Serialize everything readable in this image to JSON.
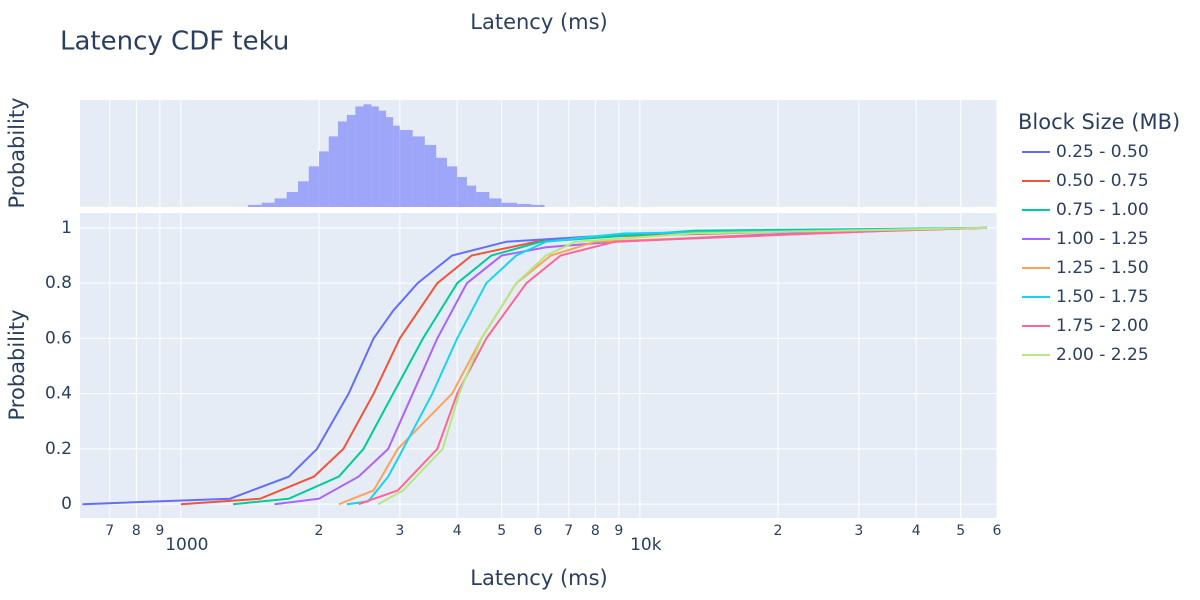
{
  "chart_data": [
    {
      "type": "histogram",
      "xlabel": "Latency (ms)",
      "ylabel": "Probability",
      "color": "#636efa",
      "log_x": true,
      "grid": true,
      "xlim": [
        603,
        60000
      ],
      "ylim": [
        0,
        0.05
      ],
      "bins": [
        1400,
        1500,
        1600,
        1700,
        1800,
        1900,
        2000,
        2100,
        2200,
        2300,
        2400,
        2500,
        2600,
        2700,
        2800,
        2900,
        3000,
        3200,
        3400,
        3600,
        3800,
        4000,
        4200,
        4400,
        4700,
        5000,
        5400,
        5800,
        6200
      ],
      "values": [
        0.001,
        0.002,
        0.004,
        0.007,
        0.012,
        0.019,
        0.026,
        0.033,
        0.04,
        0.043,
        0.047,
        0.048,
        0.047,
        0.045,
        0.042,
        0.038,
        0.036,
        0.033,
        0.029,
        0.023,
        0.019,
        0.014,
        0.01,
        0.007,
        0.004,
        0.002,
        0.0014,
        0.001
      ]
    },
    {
      "type": "line",
      "title": "Latency CDF teku",
      "xlabel": "Latency (ms)",
      "ylabel": "Probability",
      "log_x": true,
      "grid": true,
      "legend": "right",
      "legend_title": "Block Size (MB)",
      "xlim": [
        603,
        60000
      ],
      "ylim": [
        -0.05,
        1.054
      ],
      "xticks": [
        {
          "value": 700,
          "label": "7"
        },
        {
          "value": 800,
          "label": "8"
        },
        {
          "value": 900,
          "label": "9"
        },
        1000,
        {
          "value": 2000,
          "label": "2"
        },
        {
          "value": 3000,
          "label": "3"
        },
        {
          "value": 4000,
          "label": "4"
        },
        {
          "value": 5000,
          "label": "5"
        },
        {
          "value": 6000,
          "label": "6"
        },
        {
          "value": 7000,
          "label": "7"
        },
        {
          "value": 8000,
          "label": "8"
        },
        {
          "value": 9000,
          "label": "9"
        },
        {
          "value": 10000,
          "label": "10k"
        },
        {
          "value": 20000,
          "label": "2"
        },
        {
          "value": 30000,
          "label": "3"
        },
        {
          "value": 40000,
          "label": "4"
        },
        {
          "value": 50000,
          "label": "5"
        },
        {
          "value": 60000,
          "label": "6"
        }
      ],
      "yticks": [
        0,
        0.2,
        0.4,
        0.6,
        0.8,
        1
      ],
      "series": [
        {
          "name": "0.25 - 0.50",
          "color": "#636efa",
          "x": [
            610,
            1280,
            1720,
            1980,
            2320,
            2630,
            2900,
            3280,
            3900,
            5120,
            8000,
            13100,
            21600,
            57000
          ],
          "values": [
            0,
            0.02,
            0.1,
            0.2,
            0.4,
            0.6,
            0.7,
            0.8,
            0.9,
            0.95,
            0.97,
            0.98,
            0.99,
            1
          ]
        },
        {
          "name": "0.50 - 0.75",
          "color": "#EF553B",
          "x": [
            1000,
            1490,
            1950,
            2260,
            2630,
            3000,
            3620,
            4300,
            5950,
            8830,
            25000,
            57000
          ],
          "values": [
            0,
            0.02,
            0.1,
            0.2,
            0.4,
            0.6,
            0.8,
            0.9,
            0.95,
            0.97,
            0.99,
            1
          ]
        },
        {
          "name": "0.75 - 1.00",
          "color": "#00cc96",
          "x": [
            1300,
            1720,
            2210,
            2500,
            2900,
            3370,
            4000,
            4750,
            6100,
            13100,
            57000
          ],
          "values": [
            0,
            0.02,
            0.1,
            0.2,
            0.4,
            0.6,
            0.8,
            0.9,
            0.95,
            0.99,
            1
          ]
        },
        {
          "name": "1.00 - 1.25",
          "color": "#ab63fa",
          "x": [
            1600,
            2000,
            2440,
            2830,
            3200,
            3620,
            4200,
            5000,
            6250,
            8830,
            21600,
            57000
          ],
          "values": [
            0,
            0.02,
            0.1,
            0.2,
            0.4,
            0.6,
            0.8,
            0.9,
            0.93,
            0.95,
            0.98,
            1
          ]
        },
        {
          "name": "1.25 - 1.50",
          "color": "#FFA15A",
          "x": [
            2210,
            2630,
            2970,
            3900,
            4520,
            5380,
            6400,
            8000,
            17600,
            32000,
            57000
          ],
          "values": [
            0,
            0.05,
            0.2,
            0.4,
            0.6,
            0.8,
            0.9,
            0.95,
            0.97,
            0.99,
            1
          ]
        },
        {
          "name": "1.50 - 1.75",
          "color": "#19d3f3",
          "x": [
            2300,
            2560,
            2830,
            3050,
            3530,
            4000,
            4630,
            5380,
            6250,
            8000,
            9290,
            57000
          ],
          "values": [
            0,
            0.01,
            0.1,
            0.2,
            0.4,
            0.6,
            0.8,
            0.9,
            0.95,
            0.97,
            0.98,
            1
          ]
        },
        {
          "name": "1.75 - 2.00",
          "color": "#FF6692",
          "x": [
            2440,
            2970,
            3620,
            4000,
            4630,
            5660,
            6720,
            8830,
            16800,
            35300,
            57000
          ],
          "values": [
            0,
            0.05,
            0.2,
            0.4,
            0.6,
            0.8,
            0.9,
            0.95,
            0.97,
            0.99,
            1
          ]
        },
        {
          "name": "2.00 - 2.25",
          "color": "#B6E880",
          "x": [
            2690,
            3050,
            3720,
            4040,
            4520,
            5380,
            6250,
            7240,
            13100,
            57000
          ],
          "values": [
            0,
            0.05,
            0.2,
            0.4,
            0.6,
            0.8,
            0.9,
            0.95,
            0.98,
            1
          ]
        }
      ]
    }
  ]
}
